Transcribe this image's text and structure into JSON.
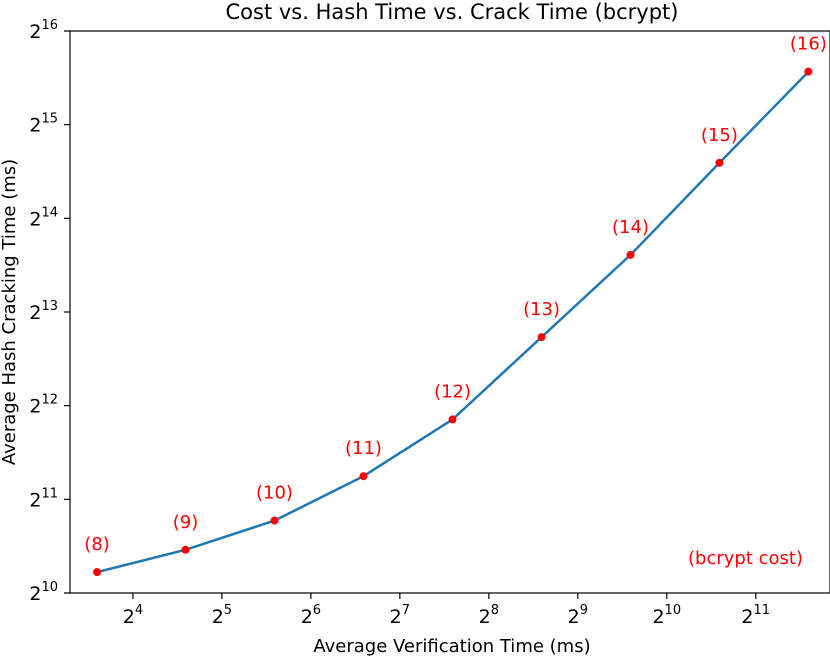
{
  "chart_data": {
    "type": "line",
    "title": "Cost vs. Hash Time vs. Crack Time (bcrypt)",
    "xlabel": "Average Verification Time (ms)",
    "ylabel": "Average Hash Cracking Time (ms)",
    "x_scale": "log2",
    "y_scale": "log2",
    "xlim": [
      9.8,
      3652
    ],
    "ylim": [
      1024,
      65536
    ],
    "x_ticks": [
      {
        "base": "2",
        "exp": "4",
        "value": 16
      },
      {
        "base": "2",
        "exp": "5",
        "value": 32
      },
      {
        "base": "2",
        "exp": "6",
        "value": 64
      },
      {
        "base": "2",
        "exp": "7",
        "value": 128
      },
      {
        "base": "2",
        "exp": "8",
        "value": 256
      },
      {
        "base": "2",
        "exp": "9",
        "value": 512
      },
      {
        "base": "2",
        "exp": "10",
        "value": 1024
      },
      {
        "base": "2",
        "exp": "11",
        "value": 2048
      }
    ],
    "y_ticks": [
      {
        "base": "2",
        "exp": "10",
        "value": 1024
      },
      {
        "base": "2",
        "exp": "11",
        "value": 2048
      },
      {
        "base": "2",
        "exp": "12",
        "value": 4096
      },
      {
        "base": "2",
        "exp": "13",
        "value": 8192
      },
      {
        "base": "2",
        "exp": "14",
        "value": 16384
      },
      {
        "base": "2",
        "exp": "15",
        "value": 32768
      },
      {
        "base": "2",
        "exp": "16",
        "value": 65536
      }
    ],
    "grid": false,
    "line_color": "#1f77b4",
    "marker_color": "#ff0000",
    "label_color": "#ff0000",
    "annotation": "(bcrypt cost)",
    "points": [
      {
        "label": "(8)",
        "x": 12.1,
        "y": 1195
      },
      {
        "label": "(9)",
        "x": 24.1,
        "y": 1410
      },
      {
        "label": "(10)",
        "x": 48.2,
        "y": 1750
      },
      {
        "label": "(11)",
        "x": 96.4,
        "y": 2430
      },
      {
        "label": "(12)",
        "x": 193,
        "y": 3700
      },
      {
        "label": "(13)",
        "x": 386,
        "y": 6800
      },
      {
        "label": "(14)",
        "x": 772,
        "y": 12500
      },
      {
        "label": "(15)",
        "x": 1543,
        "y": 24700
      },
      {
        "label": "(16)",
        "x": 3086,
        "y": 48500
      }
    ]
  }
}
